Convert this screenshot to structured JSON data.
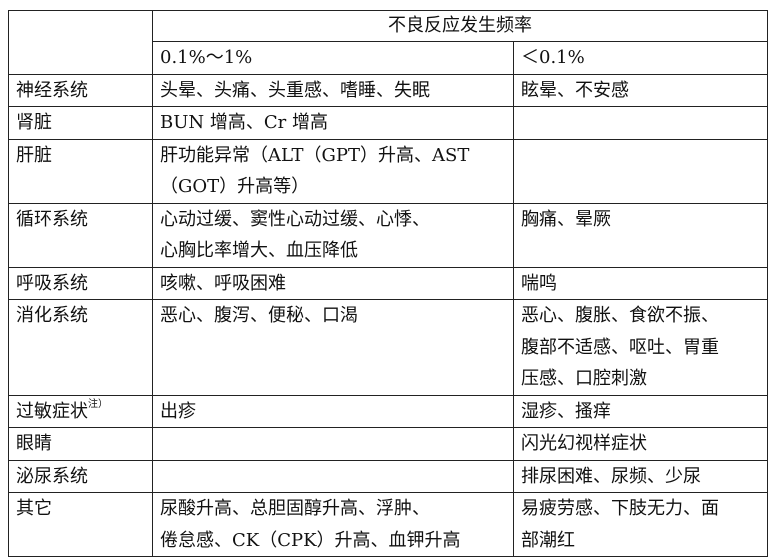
{
  "header": {
    "group_title": "不良反应发生频率",
    "col_freq_1": "0.1%～1%",
    "col_freq_2": "＜0.1%"
  },
  "rows": [
    {
      "system": "神经系统",
      "note": "",
      "freq_1": [
        "头晕、头痛、头重感、嗜睡、失眠"
      ],
      "freq_2": [
        "眩晕、不安感"
      ]
    },
    {
      "system": "肾脏",
      "note": "",
      "freq_1": [
        "BUN 增高、Cr 增高"
      ],
      "freq_2": []
    },
    {
      "system": "肝脏",
      "note": "",
      "freq_1": [
        "肝功能异常（ALT（GPT）升高、AST",
        "（GOT）升高等）"
      ],
      "freq_2": []
    },
    {
      "system": "循环系统",
      "note": "",
      "freq_1": [
        "心动过缓、窦性心动过缓、心悸、",
        "心胸比率增大、血压降低"
      ],
      "freq_2": [
        "胸痛、晕厥"
      ]
    },
    {
      "system": "呼吸系统",
      "note": "",
      "freq_1": [
        "咳嗽、呼吸困难"
      ],
      "freq_2": [
        "喘鸣"
      ]
    },
    {
      "system": "消化系统",
      "note": "",
      "freq_1": [
        "恶心、腹泻、便秘、口渴"
      ],
      "freq_2": [
        "恶心、腹胀、食欲不振、",
        "腹部不适感、呕吐、胃重",
        "压感、口腔刺激"
      ]
    },
    {
      "system": "过敏症状",
      "note": "注）",
      "freq_1": [
        "出疹"
      ],
      "freq_2": [
        "湿疹、搔痒"
      ]
    },
    {
      "system": "眼睛",
      "note": "",
      "freq_1": [],
      "freq_2": [
        "闪光幻视样症状"
      ]
    },
    {
      "system": "泌尿系统",
      "note": "",
      "freq_1": [],
      "freq_2": [
        "排尿困难、尿频、少尿"
      ]
    },
    {
      "system": "其它",
      "note": "",
      "freq_1": [
        "尿酸升高、总胆固醇升高、浮肿、",
        "倦怠感、CK（CPK）升高、血钾升高"
      ],
      "freq_2": [
        "易疲劳感、下肢无力、面",
        "部潮红"
      ]
    }
  ]
}
